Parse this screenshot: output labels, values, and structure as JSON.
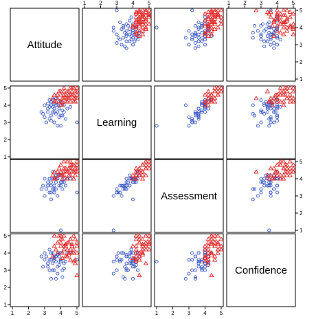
{
  "chart_data": {
    "type": "scatter",
    "title": "",
    "variables": [
      "Attitude",
      "Learning",
      "Assessment",
      "Confidence"
    ],
    "axis_range": [
      1,
      5
    ],
    "ticks": [
      1,
      2,
      3,
      4,
      5
    ],
    "tick_labels": [
      "1",
      "2",
      "3",
      "4",
      "5"
    ],
    "grid": false,
    "legend": "none",
    "groups": [
      {
        "marker": "circle",
        "color": "#3050c0"
      },
      {
        "marker": "triangle",
        "color": "#e02020"
      }
    ],
    "observations": [
      [
        3.0,
        4.0,
        4.0,
        4.0,
        0
      ],
      [
        3.2,
        3.8,
        3.6,
        3.4,
        0
      ],
      [
        3.4,
        4.2,
        3.8,
        3.6,
        0
      ],
      [
        3.6,
        3.6,
        3.4,
        3.8,
        0
      ],
      [
        3.8,
        4.0,
        4.0,
        3.2,
        0
      ],
      [
        4.0,
        3.4,
        3.6,
        4.0,
        0
      ],
      [
        3.3,
        3.2,
        3.2,
        3.6,
        0
      ],
      [
        3.5,
        3.6,
        3.4,
        3.0,
        0
      ],
      [
        3.7,
        4.0,
        3.8,
        3.5,
        0
      ],
      [
        3.9,
        3.8,
        4.2,
        3.8,
        0
      ],
      [
        4.2,
        4.0,
        4.0,
        3.4,
        0
      ],
      [
        3.1,
        3.0,
        3.4,
        3.8,
        0
      ],
      [
        3.4,
        3.4,
        3.6,
        4.0,
        0
      ],
      [
        3.6,
        3.8,
        3.6,
        3.6,
        0
      ],
      [
        3.8,
        3.6,
        4.0,
        3.9,
        0
      ],
      [
        4.0,
        4.2,
        4.2,
        3.5,
        0
      ],
      [
        3.2,
        4.1,
        3.8,
        3.2,
        0
      ],
      [
        3.5,
        4.3,
        4.4,
        4.0,
        0
      ],
      [
        3.7,
        3.5,
        3.4,
        2.5,
        0
      ],
      [
        4.1,
        3.7,
        3.8,
        3.0,
        0
      ],
      [
        3.3,
        3.9,
        4.0,
        4.2,
        0
      ],
      [
        3.6,
        4.1,
        4.0,
        3.7,
        0
      ],
      [
        3.9,
        4.2,
        4.2,
        3.3,
        0
      ],
      [
        4.3,
        3.2,
        3.6,
        3.5,
        0
      ],
      [
        3.0,
        3.3,
        3.0,
        3.6,
        0
      ],
      [
        3.4,
        3.1,
        3.2,
        4.0,
        0
      ],
      [
        3.8,
        2.8,
        3.0,
        2.8,
        0
      ],
      [
        4.2,
        3.6,
        3.8,
        3.1,
        0
      ],
      [
        3.5,
        3.9,
        4.0,
        3.4,
        0
      ],
      [
        4.4,
        3.8,
        4.0,
        4.0,
        0
      ],
      [
        3.6,
        3.0,
        3.2,
        3.0,
        0
      ],
      [
        2.8,
        3.6,
        3.4,
        3.8,
        0
      ],
      [
        3.9,
        3.3,
        3.6,
        4.0,
        0
      ],
      [
        4.0,
        4.0,
        3.8,
        3.6,
        0
      ],
      [
        3.2,
        3.6,
        3.6,
        3.4,
        0
      ],
      [
        4.1,
        3.4,
        3.4,
        2.6,
        0
      ],
      [
        4.6,
        3.9,
        4.0,
        4.0,
        0
      ],
      [
        3.7,
        4.4,
        4.2,
        3.8,
        0
      ],
      [
        3.3,
        4.3,
        4.0,
        3.0,
        0
      ],
      [
        2.9,
        3.5,
        3.6,
        3.2,
        0
      ],
      [
        5.0,
        3.0,
        3.2,
        3.6,
        0
      ],
      [
        4.0,
        2.8,
        1.0,
        3.5,
        0
      ],
      [
        3.4,
        4.0,
        2.8,
        2.5,
        0
      ],
      [
        4.0,
        4.6,
        4.4,
        4.8,
        1
      ],
      [
        4.2,
        4.8,
        4.6,
        4.4,
        1
      ],
      [
        4.4,
        4.4,
        4.4,
        4.6,
        1
      ],
      [
        4.6,
        4.6,
        4.8,
        4.2,
        1
      ],
      [
        4.8,
        5.0,
        4.8,
        5.0,
        1
      ],
      [
        5.0,
        4.8,
        5.0,
        4.4,
        1
      ],
      [
        4.1,
        4.2,
        4.2,
        4.0,
        1
      ],
      [
        4.3,
        4.4,
        4.6,
        3.8,
        1
      ],
      [
        4.5,
        4.8,
        4.6,
        4.6,
        1
      ],
      [
        4.7,
        4.6,
        4.4,
        4.0,
        1
      ],
      [
        4.9,
        4.4,
        4.6,
        3.6,
        1
      ],
      [
        3.8,
        4.4,
        4.2,
        4.6,
        1
      ],
      [
        4.0,
        4.2,
        4.4,
        5.0,
        1
      ],
      [
        4.2,
        4.6,
        4.2,
        4.2,
        1
      ],
      [
        4.4,
        4.2,
        4.0,
        3.8,
        1
      ],
      [
        4.6,
        5.0,
        5.0,
        4.8,
        1
      ],
      [
        4.8,
        4.6,
        4.8,
        4.2,
        1
      ],
      [
        3.6,
        4.6,
        4.0,
        4.4,
        1
      ],
      [
        3.9,
        4.8,
        4.6,
        5.0,
        1
      ],
      [
        4.1,
        4.0,
        4.0,
        3.7,
        1
      ],
      [
        4.3,
        4.6,
        4.4,
        4.5,
        1
      ],
      [
        4.5,
        4.4,
        4.2,
        4.0,
        1
      ],
      [
        4.7,
        4.8,
        4.6,
        4.4,
        1
      ],
      [
        4.9,
        4.2,
        4.4,
        4.8,
        1
      ],
      [
        5.0,
        4.6,
        4.8,
        4.0,
        1
      ],
      [
        3.5,
        4.4,
        4.2,
        3.8,
        1
      ],
      [
        3.7,
        4.2,
        4.0,
        4.2,
        1
      ],
      [
        4.0,
        4.8,
        4.8,
        4.6,
        1
      ],
      [
        4.2,
        4.4,
        4.4,
        5.0,
        1
      ],
      [
        4.4,
        4.8,
        5.0,
        4.2,
        1
      ],
      [
        4.6,
        4.2,
        4.2,
        3.6,
        1
      ],
      [
        4.8,
        4.4,
        4.4,
        4.0,
        1
      ],
      [
        5.0,
        5.0,
        4.6,
        4.6,
        1
      ],
      [
        4.1,
        4.4,
        4.2,
        4.8,
        1
      ],
      [
        4.3,
        4.2,
        4.6,
        4.4,
        1
      ],
      [
        4.5,
        4.6,
        4.4,
        3.9,
        1
      ],
      [
        4.7,
        5.0,
        4.8,
        4.5,
        1
      ],
      [
        3.8,
        4.6,
        4.4,
        4.0,
        1
      ],
      [
        4.0,
        4.0,
        4.2,
        4.4,
        1
      ],
      [
        4.2,
        5.0,
        5.0,
        4.2,
        1
      ],
      [
        4.6,
        4.4,
        4.6,
        4.8,
        1
      ],
      [
        4.8,
        4.2,
        4.0,
        3.5,
        1
      ],
      [
        4.9,
        4.8,
        4.2,
        3.4,
        1
      ],
      [
        5.0,
        4.4,
        4.4,
        2.7,
        1
      ],
      [
        3.6,
        4.2,
        4.4,
        5.0,
        1
      ]
    ]
  }
}
